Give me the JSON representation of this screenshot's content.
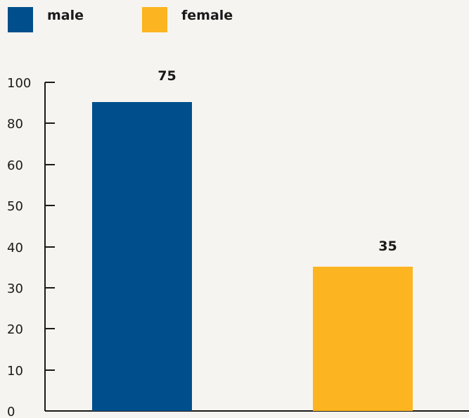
{
  "chart_data": {
    "type": "bar",
    "title": "",
    "xlabel": "",
    "ylabel": "",
    "categories": [
      "male",
      "female"
    ],
    "values": [
      75,
      35
    ],
    "data_labels": [
      "75",
      "35"
    ],
    "y_ticks": [
      "0",
      "10",
      "20",
      "30",
      "40",
      "50",
      "60",
      "80",
      "100"
    ],
    "grid": false,
    "legend_position": "top-left",
    "colors": {
      "male": "#004f8c",
      "female": "#fcb520",
      "axis": "#1a1a1a",
      "background": "#f6f4f0"
    }
  }
}
